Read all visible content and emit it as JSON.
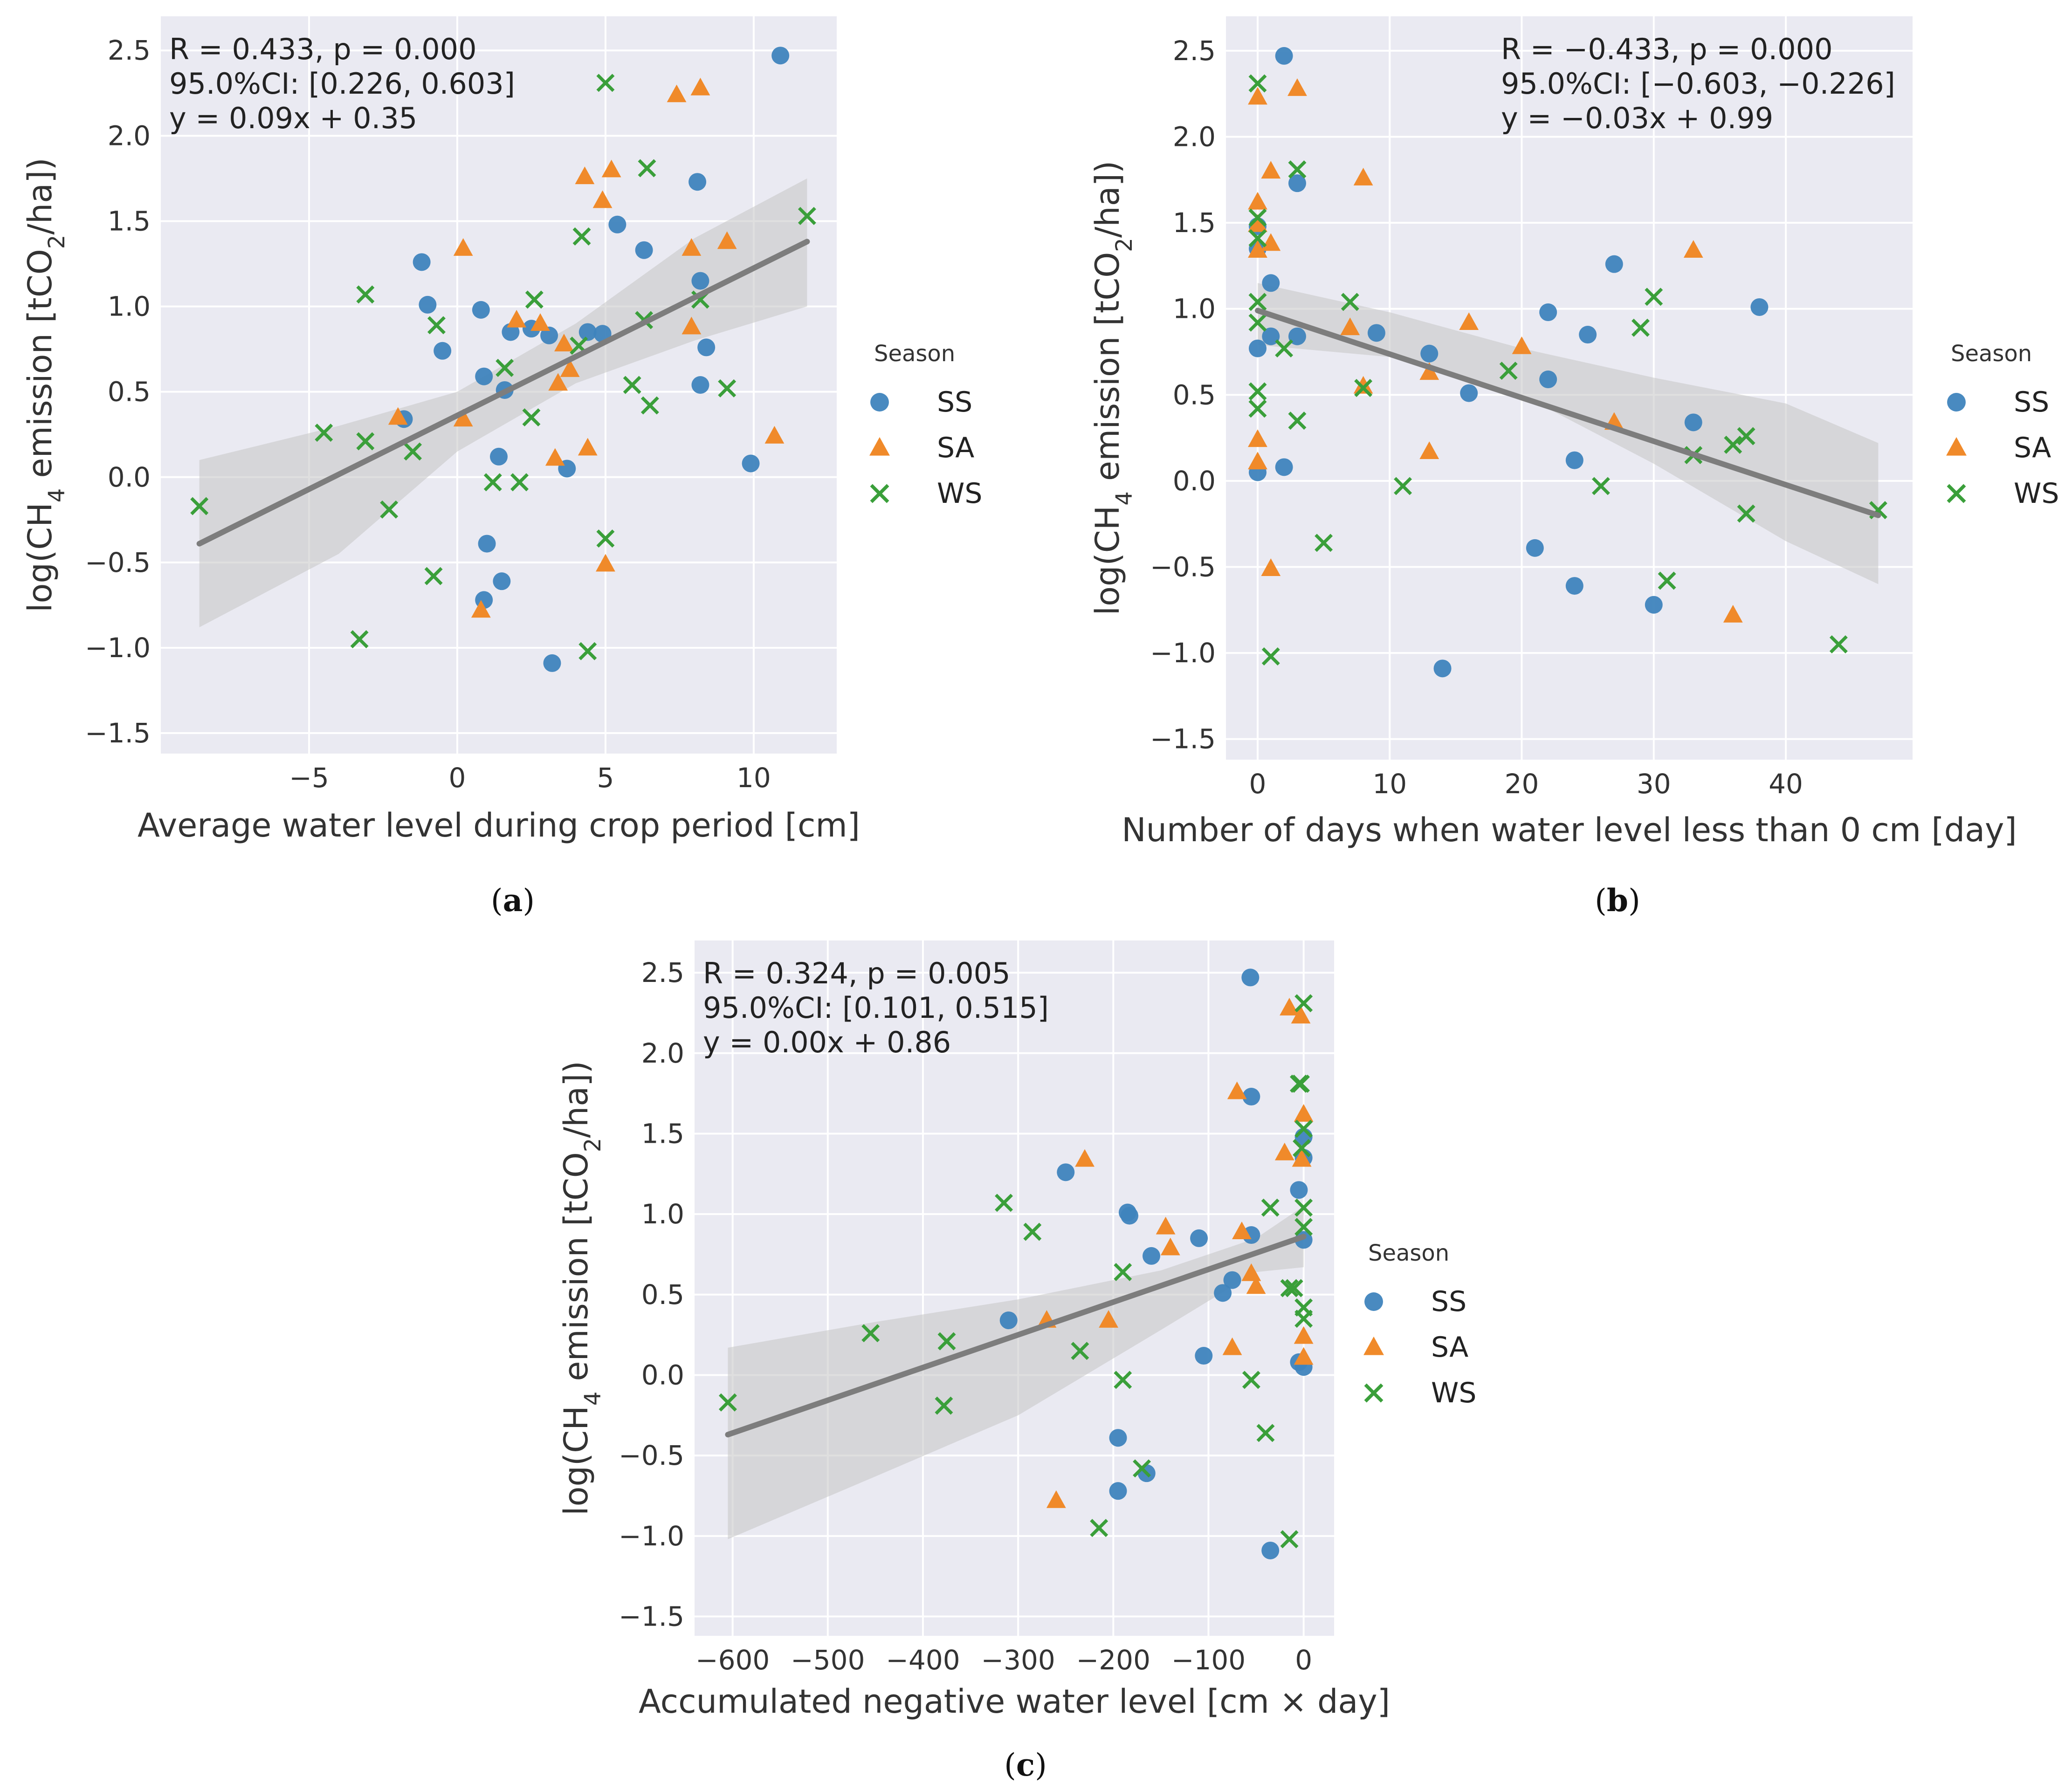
{
  "colors": {
    "SS": "#3f84bd",
    "SA": "#f08a2a",
    "WS": "#3a9f3a",
    "fit": "#7d7d7d",
    "band": "#c4c4c4",
    "panel_bg": "#eaeaf2",
    "grid": "#ffffff"
  },
  "chart_data": [
    {
      "id": "a",
      "type": "scatter",
      "panel_label_letter": "a",
      "xlabel": "Average water level during crop period [cm]",
      "ylabel": "log(CH4 emission [tCO2/ha])",
      "ylabel_parts": {
        "pre": "log(CH",
        "sub1": "4",
        "mid": " emission [tCO",
        "sub2": "2",
        "post": "/ha])"
      },
      "xlim": [
        -10,
        12.8
      ],
      "ylim": [
        -1.62,
        2.7
      ],
      "xticks": [
        -5,
        0,
        5,
        10
      ],
      "xtick_labels": [
        "−5",
        "0",
        "5",
        "10"
      ],
      "yticks": [
        -1.5,
        -1.0,
        -0.5,
        0.0,
        0.5,
        1.0,
        1.5,
        2.0,
        2.5
      ],
      "ytick_labels": [
        "−1.5",
        "−1.0",
        "−0.5",
        "0.0",
        "0.5",
        "1.0",
        "1.5",
        "2.0",
        "2.5"
      ],
      "stats": [
        "R = 0.433, p = 0.000",
        "95.0%CI: [0.226, 0.603]",
        "y = 0.09x + 0.35"
      ],
      "fit": {
        "x": [
          -8.7,
          11.8
        ],
        "y": [
          -0.39,
          1.38
        ]
      },
      "band": {
        "x": [
          -8.7,
          -4,
          0,
          4,
          8,
          11.8
        ],
        "upper": [
          0.1,
          0.3,
          0.5,
          0.9,
          1.4,
          1.75
        ],
        "lower": [
          -0.88,
          -0.45,
          0.15,
          0.55,
          0.8,
          1.0
        ]
      },
      "legend": {
        "title": "Season",
        "position": "right outside",
        "entries": [
          "SS",
          "SA",
          "WS"
        ]
      },
      "series": [
        {
          "name": "SS",
          "marker": "circle",
          "x": [
            10.9,
            -1.2,
            -1.0,
            -0.5,
            0.8,
            0.9,
            1.6,
            1.8,
            2.5,
            3.1,
            4.4,
            4.9,
            5.4,
            6.3,
            8.1,
            8.2,
            8.4,
            8.2,
            9.9,
            -1.8,
            1.4,
            3.7,
            1.0,
            1.5,
            0.9,
            3.2
          ],
          "y": [
            2.47,
            1.26,
            1.01,
            0.74,
            0.98,
            0.59,
            0.51,
            0.85,
            0.87,
            0.83,
            0.85,
            0.84,
            1.48,
            1.33,
            1.73,
            1.15,
            0.76,
            0.54,
            0.08,
            0.34,
            0.12,
            0.05,
            -0.39,
            -0.61,
            -0.72,
            -1.09
          ]
        },
        {
          "name": "SA",
          "marker": "triangle",
          "x": [
            7.4,
            8.2,
            4.3,
            5.2,
            4.9,
            0.2,
            7.9,
            9.1,
            2.0,
            2.8,
            3.6,
            3.8,
            3.4,
            7.9,
            -2.0,
            0.2,
            10.7,
            3.3,
            4.4,
            5.0,
            0.8
          ],
          "y": [
            2.24,
            2.28,
            1.76,
            1.8,
            1.62,
            1.34,
            1.34,
            1.38,
            0.92,
            0.9,
            0.78,
            0.63,
            0.55,
            0.88,
            0.35,
            0.34,
            0.24,
            0.11,
            0.17,
            -0.51,
            -0.78
          ]
        },
        {
          "name": "WS",
          "marker": "x",
          "x": [
            5.0,
            6.4,
            11.8,
            4.2,
            8.2,
            -3.1,
            2.6,
            6.3,
            -0.7,
            1.6,
            4.1,
            5.9,
            6.5,
            9.1,
            -4.5,
            -3.1,
            -1.5,
            2.5,
            -8.7,
            -2.3,
            1.2,
            2.1,
            -0.8,
            5.0,
            4.4,
            -3.3
          ],
          "y": [
            2.31,
            1.81,
            1.53,
            1.41,
            1.04,
            1.07,
            1.04,
            0.92,
            0.89,
            0.64,
            0.77,
            0.54,
            0.42,
            0.52,
            0.26,
            0.21,
            0.15,
            0.35,
            -0.17,
            -0.19,
            -0.03,
            -0.03,
            -0.58,
            -0.36,
            -1.02,
            -0.95
          ]
        }
      ]
    },
    {
      "id": "b",
      "type": "scatter",
      "panel_label_letter": "b",
      "xlabel": "Number of days when water level less than 0 cm [day]",
      "ylabel": "log(CH4 emission [tCO2/ha])",
      "ylabel_parts": {
        "pre": "log(CH",
        "sub1": "4",
        "mid": " emission [tCO",
        "sub2": "2",
        "post": "/ha])"
      },
      "xlim": [
        -2.4,
        49.6
      ],
      "ylim": [
        -1.62,
        2.7
      ],
      "xticks": [
        0,
        10,
        20,
        30,
        40
      ],
      "xtick_labels": [
        "0",
        "10",
        "20",
        "30",
        "40"
      ],
      "yticks": [
        -1.5,
        -1.0,
        -0.5,
        0.0,
        0.5,
        1.0,
        1.5,
        2.0,
        2.5
      ],
      "ytick_labels": [
        "−1.5",
        "−1.0",
        "−0.5",
        "0.0",
        "0.5",
        "1.0",
        "1.5",
        "2.0",
        "2.5"
      ],
      "stats": [
        "R = −0.433, p = 0.000",
        "95.0%CI: [−0.603, −0.226]",
        "y = −0.03x + 0.99"
      ],
      "fit": {
        "x": [
          0,
          47
        ],
        "y": [
          0.99,
          -0.2
        ]
      },
      "band": {
        "x": [
          0,
          10,
          20,
          30,
          40,
          47
        ],
        "upper": [
          1.15,
          0.98,
          0.77,
          0.6,
          0.45,
          0.22
        ],
        "lower": [
          0.79,
          0.72,
          0.5,
          0.1,
          -0.35,
          -0.6
        ]
      },
      "legend": {
        "title": "Season",
        "position": "right outside",
        "entries": [
          "SS",
          "SA",
          "WS"
        ]
      },
      "series": [
        {
          "name": "SS",
          "marker": "circle",
          "x": [
            2,
            3,
            0,
            0,
            1,
            1,
            3,
            9,
            13,
            22,
            25,
            27,
            38,
            16,
            22,
            33,
            24,
            0,
            2,
            0,
            21,
            24,
            30,
            14
          ],
          "y": [
            2.47,
            1.73,
            1.48,
            1.35,
            1.15,
            0.84,
            0.84,
            0.86,
            0.74,
            0.98,
            0.85,
            1.26,
            1.01,
            0.51,
            0.59,
            0.34,
            0.12,
            0.05,
            0.08,
            0.77,
            -0.39,
            -0.61,
            -0.72,
            -1.09
          ]
        },
        {
          "name": "SA",
          "marker": "triangle",
          "x": [
            0,
            3,
            1,
            8,
            0,
            0,
            1,
            0,
            33,
            16,
            7,
            20,
            13,
            27,
            8,
            0,
            0,
            13,
            1,
            36
          ],
          "y": [
            2.23,
            2.28,
            1.8,
            1.76,
            1.62,
            1.34,
            1.38,
            1.49,
            1.34,
            0.92,
            0.89,
            0.78,
            0.63,
            0.34,
            0.55,
            0.24,
            0.11,
            0.17,
            -0.51,
            -0.78
          ]
        },
        {
          "name": "WS",
          "marker": "x",
          "x": [
            0,
            3,
            0,
            0,
            0,
            7,
            30,
            0,
            29,
            2,
            19,
            8,
            0,
            3,
            0,
            33,
            36,
            37,
            47,
            37,
            11,
            26,
            5,
            31,
            44,
            1
          ],
          "y": [
            2.31,
            1.81,
            1.53,
            1.41,
            1.04,
            1.04,
            1.07,
            0.92,
            0.89,
            0.77,
            0.64,
            0.54,
            0.52,
            0.35,
            0.42,
            0.15,
            0.21,
            0.26,
            -0.17,
            -0.19,
            -0.03,
            -0.03,
            -0.36,
            -0.58,
            -0.95,
            -1.02
          ]
        }
      ]
    },
    {
      "id": "c",
      "type": "scatter",
      "panel_label_letter": "c",
      "xlabel": "Accumulated negative water level [cm × day]",
      "ylabel": "log(CH4 emission [tCO2/ha])",
      "ylabel_parts": {
        "pre": "log(CH",
        "sub1": "4",
        "mid": " emission [tCO",
        "sub2": "2",
        "post": "/ha])"
      },
      "xlim": [
        -640,
        32
      ],
      "ylim": [
        -1.62,
        2.7
      ],
      "xticks": [
        -600,
        -500,
        -400,
        -300,
        -200,
        -100,
        0
      ],
      "xtick_labels": [
        "−600",
        "−500",
        "−400",
        "−300",
        "−200",
        "−100",
        "0"
      ],
      "yticks": [
        -1.5,
        -1.0,
        -0.5,
        0.0,
        0.5,
        1.0,
        1.5,
        2.0,
        2.5
      ],
      "ytick_labels": [
        "−1.5",
        "−1.0",
        "−0.5",
        "0.0",
        "0.5",
        "1.0",
        "1.5",
        "2.0",
        "2.5"
      ],
      "stats": [
        "R = 0.324, p = 0.005",
        "95.0%CI: [0.101, 0.515]",
        "y = 0.00x + 0.86"
      ],
      "fit": {
        "x": [
          -605,
          0
        ],
        "y": [
          -0.37,
          0.86
        ]
      },
      "band": {
        "x": [
          -605,
          -450,
          -300,
          -150,
          -50,
          0
        ],
        "upper": [
          0.17,
          0.33,
          0.47,
          0.65,
          0.85,
          1.05
        ],
        "lower": [
          -1.02,
          -0.63,
          -0.25,
          0.28,
          0.64,
          0.67
        ]
      },
      "legend": {
        "title": "Season",
        "position": "right outside",
        "entries": [
          "SS",
          "SA",
          "WS"
        ]
      },
      "series": [
        {
          "name": "SS",
          "marker": "circle",
          "x": [
            -56,
            -55,
            0,
            0,
            -5,
            -250,
            -185,
            -183,
            -160,
            -110,
            -55,
            -75,
            -85,
            -310,
            -105,
            -5,
            0,
            -195,
            -195,
            -165,
            -35,
            0
          ],
          "y": [
            2.47,
            1.73,
            1.48,
            1.35,
            1.15,
            1.26,
            1.01,
            0.99,
            0.74,
            0.85,
            0.87,
            0.59,
            0.51,
            0.34,
            0.12,
            0.08,
            0.05,
            -0.39,
            -0.72,
            -0.61,
            -1.09,
            0.84
          ]
        },
        {
          "name": "SA",
          "marker": "triangle",
          "x": [
            -15,
            -3,
            -70,
            0,
            -2,
            -20,
            -230,
            -145,
            -140,
            -65,
            -55,
            -270,
            -205,
            -75,
            -50,
            0,
            0,
            -260
          ],
          "y": [
            2.28,
            2.23,
            1.76,
            1.62,
            1.34,
            1.38,
            1.34,
            0.92,
            0.79,
            0.89,
            0.63,
            0.34,
            0.34,
            0.17,
            0.55,
            0.24,
            0.11,
            -0.78
          ]
        },
        {
          "name": "WS",
          "marker": "x",
          "x": [
            0,
            -5,
            0,
            -2,
            0,
            -35,
            -315,
            -285,
            -190,
            0,
            -15,
            -10,
            0,
            -455,
            -375,
            -235,
            -605,
            -378,
            -190,
            -55,
            -40,
            -170,
            -215,
            -15,
            0,
            -3
          ],
          "y": [
            2.31,
            1.81,
            1.53,
            1.41,
            1.04,
            1.04,
            1.07,
            0.89,
            0.64,
            0.92,
            0.54,
            0.54,
            0.42,
            0.26,
            0.21,
            0.15,
            -0.17,
            -0.19,
            -0.03,
            -0.03,
            -0.36,
            -0.58,
            -0.95,
            -1.02,
            0.35,
            1.81
          ]
        }
      ]
    }
  ]
}
